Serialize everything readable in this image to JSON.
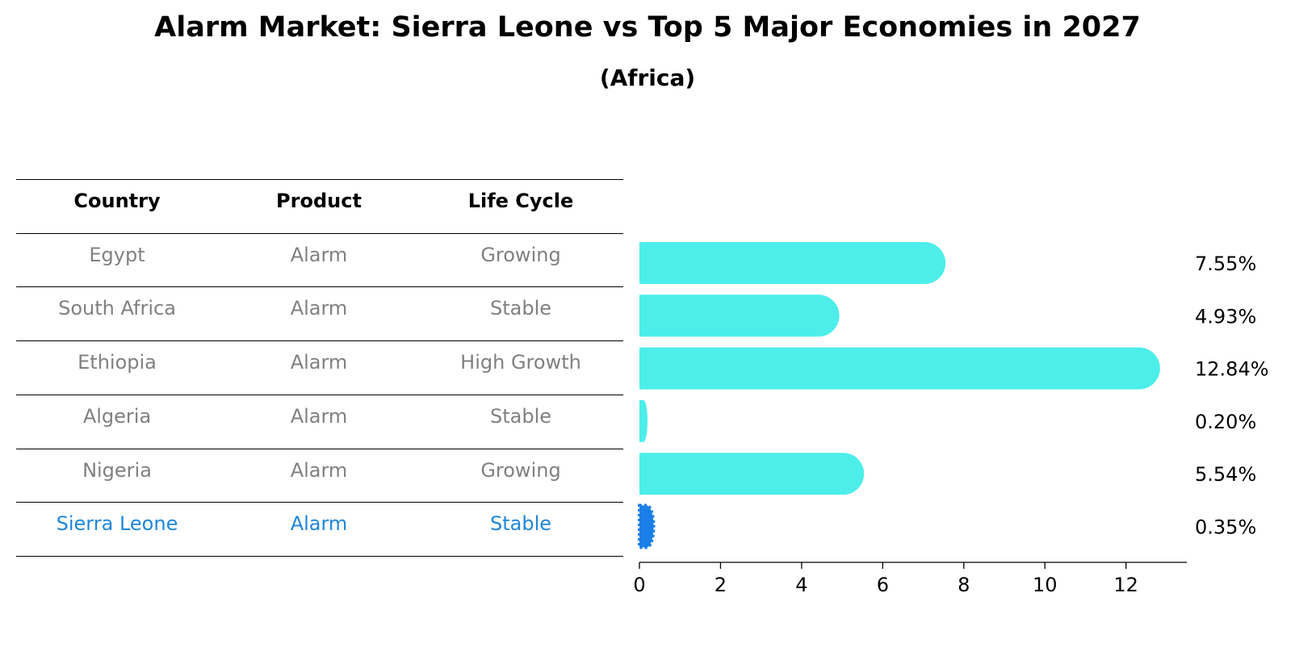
{
  "title": "Alarm Market: Sierra Leone vs Top 5 Major Economies in 2027",
  "subtitle": "(Africa)",
  "table": {
    "headers": [
      "Country",
      "Product",
      "Life Cycle"
    ],
    "rows": [
      {
        "country": "Egypt",
        "product": "Alarm",
        "life_cycle": "Growing",
        "highlight": false
      },
      {
        "country": "South Africa",
        "product": "Alarm",
        "life_cycle": "Stable",
        "highlight": false
      },
      {
        "country": "Ethiopia",
        "product": "Alarm",
        "life_cycle": "High Growth",
        "highlight": false
      },
      {
        "country": "Algeria",
        "product": "Alarm",
        "life_cycle": "Stable",
        "highlight": false
      },
      {
        "country": "Nigeria",
        "product": "Alarm",
        "life_cycle": "Growing",
        "highlight": false
      },
      {
        "country": "Sierra Leone",
        "product": "Alarm",
        "life_cycle": "Stable",
        "highlight": true
      }
    ]
  },
  "chart_data": {
    "type": "bar",
    "orientation": "horizontal",
    "categories": [
      "Egypt",
      "South Africa",
      "Ethiopia",
      "Algeria",
      "Nigeria",
      "Sierra Leone"
    ],
    "values": [
      7.55,
      4.93,
      12.84,
      0.2,
      5.54,
      0.35
    ],
    "value_labels": [
      "7.55%",
      "4.93%",
      "12.84%",
      "0.20%",
      "5.54%",
      "0.35%"
    ],
    "xlim": [
      0,
      13.5
    ],
    "xticks": [
      0,
      2,
      4,
      6,
      8,
      10,
      12
    ],
    "grid": false,
    "colors": {
      "default": "#4deeea",
      "highlight": "#1a7fe8"
    },
    "highlight_index": 5
  }
}
